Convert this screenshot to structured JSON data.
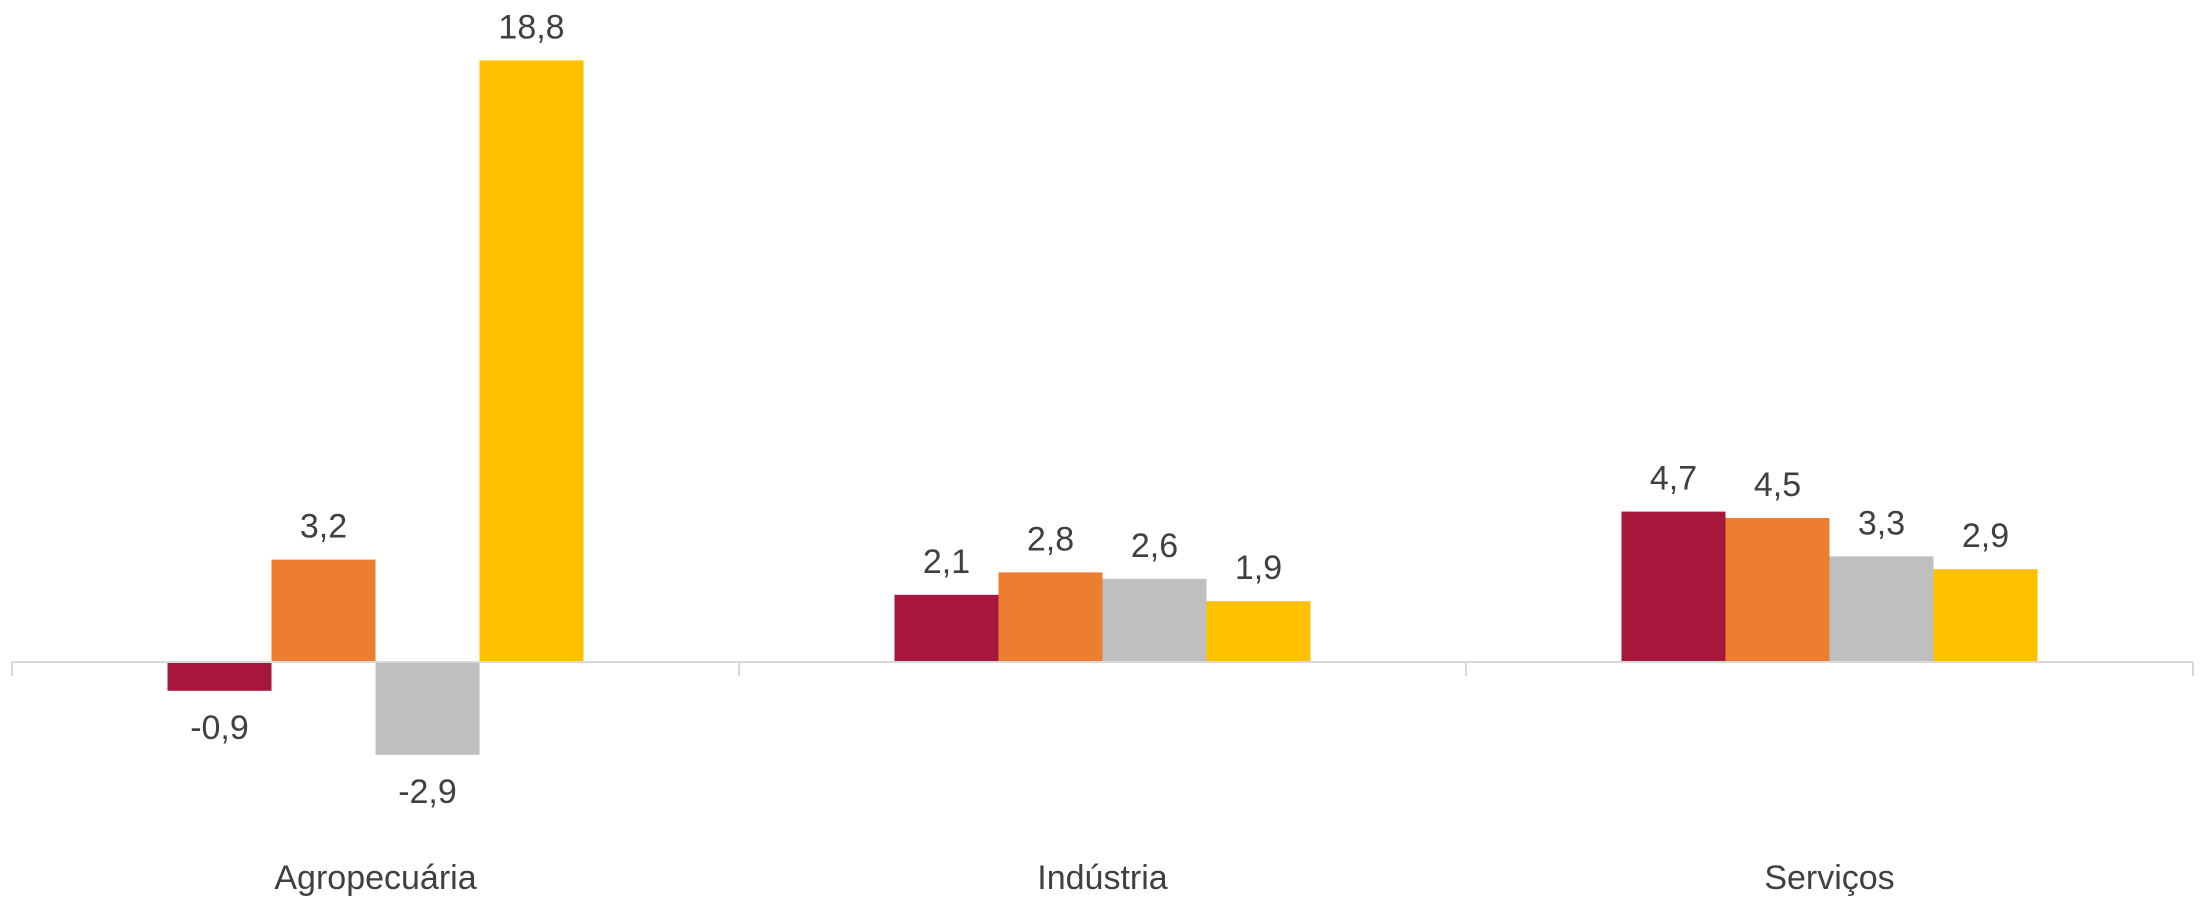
{
  "chart_data": {
    "type": "bar",
    "categories": [
      "Agropecuária",
      "Indústria",
      "Serviços"
    ],
    "series": [
      {
        "color": "#A6173B",
        "values": [
          -0.9,
          2.1,
          4.7
        ],
        "labels": [
          "-0,9",
          "2,1",
          "4,7"
        ]
      },
      {
        "color": "#ED7D31",
        "values": [
          3.2,
          2.8,
          4.5
        ],
        "labels": [
          "3,2",
          "2,8",
          "4,5"
        ]
      },
      {
        "color": "#BFBFBF",
        "values": [
          -2.9,
          2.6,
          3.3
        ],
        "labels": [
          "-2,9",
          "2,6",
          "3,3"
        ]
      },
      {
        "color": "#FFC000",
        "values": [
          18.8,
          1.9,
          2.9
        ],
        "labels": [
          "18,8",
          "1,9",
          "2,9"
        ]
      }
    ],
    "title": "",
    "xlabel": "",
    "ylabel": "",
    "ylim": [
      -2.9,
      18.8
    ],
    "grid": false,
    "legend": "none",
    "axis_color": "#D9D9D9",
    "label_color": "#404040"
  }
}
